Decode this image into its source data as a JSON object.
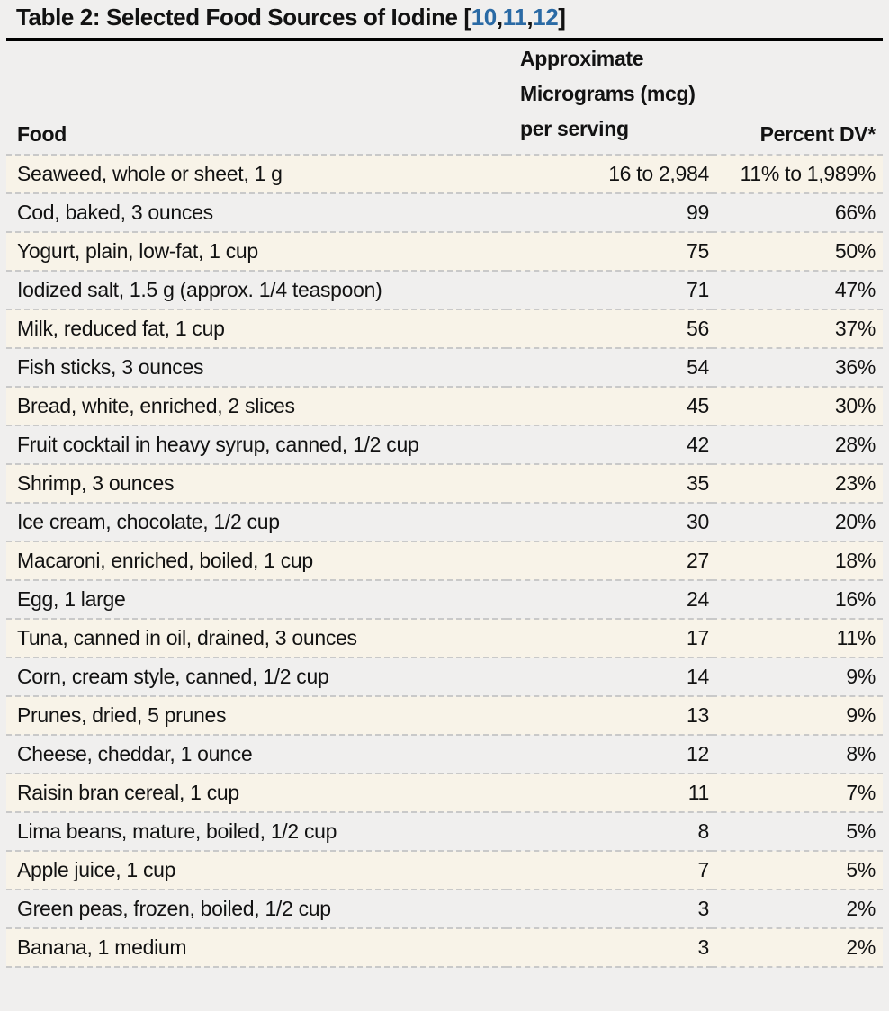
{
  "title": {
    "prefix": "Table 2: Selected Food Sources of Iodine [",
    "refs": [
      "10",
      "11",
      "12"
    ],
    "separator": ",",
    "suffix": "]"
  },
  "colors": {
    "link_blue": "#2a6aa5",
    "row_stripe_cream": "#f8f3e8",
    "page_background": "#f0efee",
    "dashed_divider": "#c9c9c9",
    "title_rule": "#000000"
  },
  "table": {
    "headers": {
      "food": "Food",
      "mcg_lines": [
        "Approximate",
        "Micrograms (mcg)",
        "per serving"
      ],
      "percent_dv": "Percent DV*"
    },
    "rows": [
      {
        "food": "Seaweed, whole or sheet, 1 g",
        "mcg": "16 to 2,984",
        "percent_dv": "11% to 1,989%"
      },
      {
        "food": "Cod, baked, 3 ounces",
        "mcg": "99",
        "percent_dv": "66%"
      },
      {
        "food": "Yogurt, plain, low-fat, 1 cup",
        "mcg": "75",
        "percent_dv": "50%"
      },
      {
        "food": "Iodized salt, 1.5 g (approx. 1/4 teaspoon)",
        "mcg": "71",
        "percent_dv": "47%"
      },
      {
        "food": "Milk, reduced fat, 1 cup",
        "mcg": "56",
        "percent_dv": "37%"
      },
      {
        "food": "Fish sticks, 3 ounces",
        "mcg": "54",
        "percent_dv": "36%"
      },
      {
        "food": "Bread, white, enriched, 2 slices",
        "mcg": "45",
        "percent_dv": "30%"
      },
      {
        "food": "Fruit cocktail in heavy syrup, canned, 1/2 cup",
        "mcg": "42",
        "percent_dv": "28%"
      },
      {
        "food": "Shrimp, 3 ounces",
        "mcg": "35",
        "percent_dv": "23%"
      },
      {
        "food": "Ice cream, chocolate, 1/2 cup",
        "mcg": "30",
        "percent_dv": "20%"
      },
      {
        "food": "Macaroni, enriched, boiled, 1 cup",
        "mcg": "27",
        "percent_dv": "18%"
      },
      {
        "food": "Egg, 1 large",
        "mcg": "24",
        "percent_dv": "16%"
      },
      {
        "food": "Tuna, canned in oil, drained, 3 ounces",
        "mcg": "17",
        "percent_dv": "11%"
      },
      {
        "food": "Corn, cream style, canned, 1/2 cup",
        "mcg": "14",
        "percent_dv": "9%"
      },
      {
        "food": "Prunes, dried, 5 prunes",
        "mcg": "13",
        "percent_dv": "9%"
      },
      {
        "food": "Cheese, cheddar, 1 ounce",
        "mcg": "12",
        "percent_dv": "8%"
      },
      {
        "food": "Raisin bran cereal, 1 cup",
        "mcg": "11",
        "percent_dv": "7%"
      },
      {
        "food": "Lima beans, mature, boiled, 1/2 cup",
        "mcg": "8",
        "percent_dv": "5%"
      },
      {
        "food": "Apple juice, 1 cup",
        "mcg": "7",
        "percent_dv": "5%"
      },
      {
        "food": "Green peas, frozen, boiled, 1/2 cup",
        "mcg": "3",
        "percent_dv": "2%"
      },
      {
        "food": "Banana, 1 medium",
        "mcg": "3",
        "percent_dv": "2%"
      }
    ]
  }
}
